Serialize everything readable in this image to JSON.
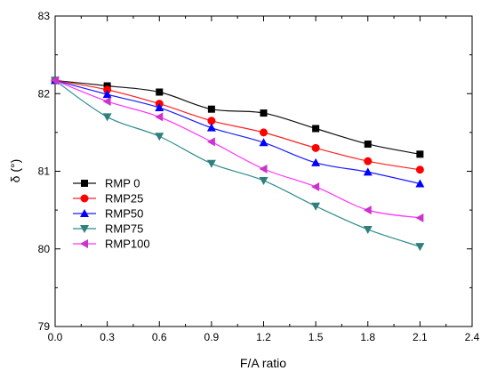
{
  "chart_data": {
    "type": "line",
    "xlabel": "F/A ratio",
    "ylabel": "δ (°)",
    "xlim": [
      0.0,
      2.4
    ],
    "ylim": [
      79,
      83
    ],
    "x_ticks": [
      "0.0",
      "0.3",
      "0.6",
      "0.9",
      "1.2",
      "1.5",
      "1.8",
      "2.1",
      "2.4"
    ],
    "y_ticks": [
      "79",
      "80",
      "81",
      "82",
      "83"
    ],
    "grid": false,
    "legend_position": "bottom-left",
    "x": [
      0.0,
      0.3,
      0.6,
      0.9,
      1.2,
      1.5,
      1.8,
      2.1
    ],
    "series": [
      {
        "name": "RMP 0",
        "marker": "square",
        "line_color": "#111111",
        "marker_color": "#000000",
        "values": [
          82.17,
          82.1,
          82.02,
          81.8,
          81.75,
          81.55,
          81.35,
          81.22
        ]
      },
      {
        "name": "RMP25",
        "marker": "circle",
        "line_color": "#ff2020",
        "marker_color": "#ff0000",
        "values": [
          82.17,
          82.05,
          81.87,
          81.65,
          81.5,
          81.3,
          81.13,
          81.02
        ]
      },
      {
        "name": "RMP50",
        "marker": "triangle-up",
        "line_color": "#1a1aff",
        "marker_color": "#0000ff",
        "values": [
          82.17,
          81.99,
          81.82,
          81.56,
          81.37,
          81.11,
          80.99,
          80.84
        ]
      },
      {
        "name": "RMP75",
        "marker": "triangle-down",
        "line_color": "#2f8c8c",
        "marker_color": "#2f7f7f",
        "values": [
          82.17,
          81.7,
          81.45,
          81.1,
          80.88,
          80.55,
          80.25,
          80.03
        ]
      },
      {
        "name": "RMP100",
        "marker": "triangle-left",
        "line_color": "#ff30ff",
        "marker_color": "#cc33cc",
        "values": [
          82.17,
          81.9,
          81.7,
          81.38,
          81.03,
          80.8,
          80.5,
          80.4
        ]
      }
    ]
  }
}
